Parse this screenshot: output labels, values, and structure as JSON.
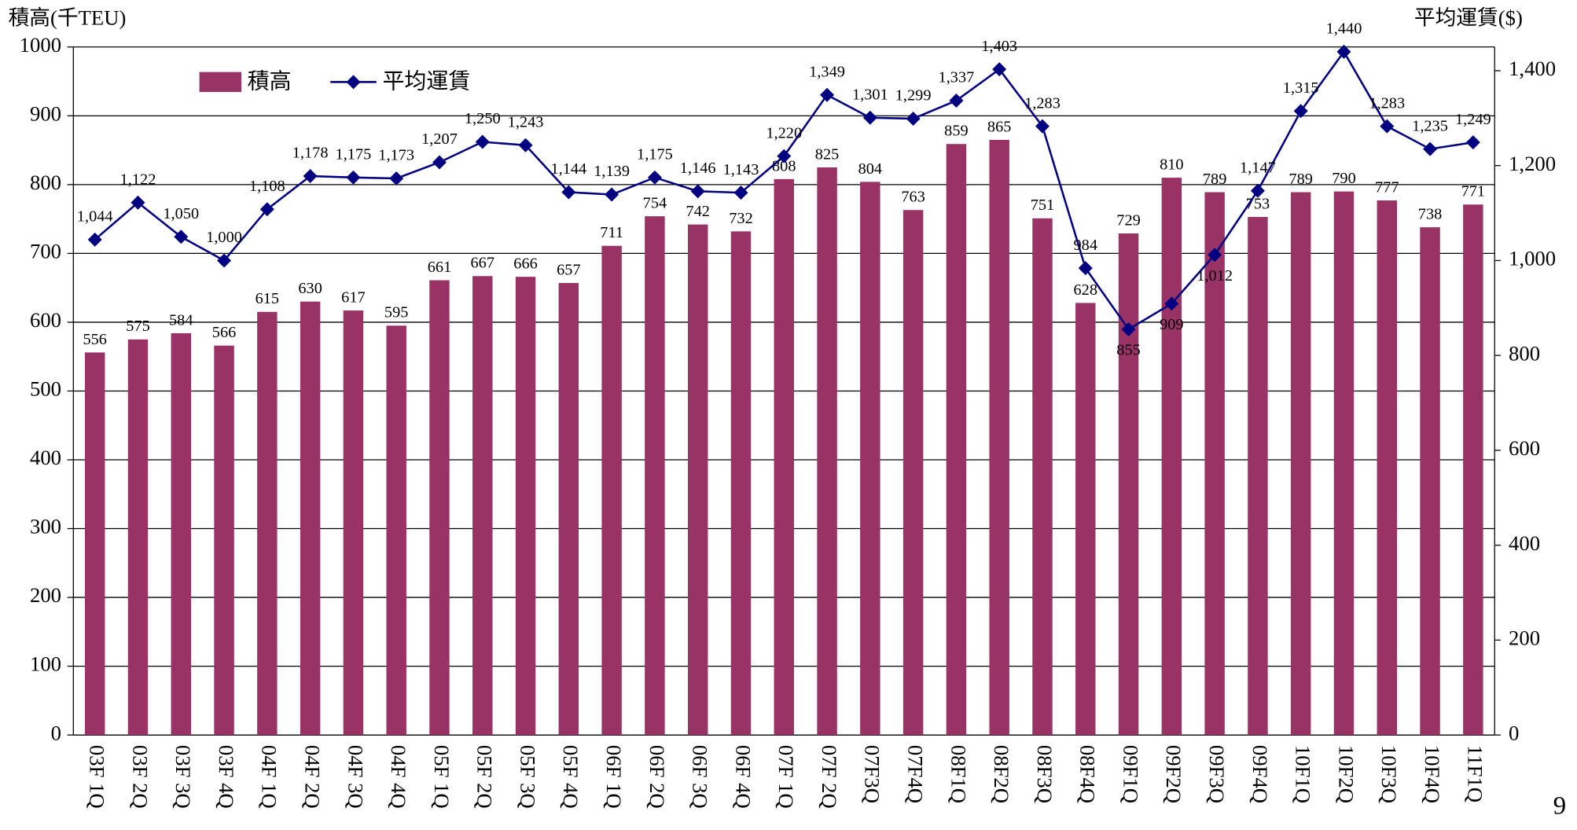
{
  "chart_data": {
    "type": "bar_line",
    "y_axis_label": "積高(千TEU)",
    "y2_axis_label": "平均運賃($)",
    "categories": [
      "03F 1Q",
      "03F 2Q",
      "03F 3Q",
      "03F 4Q",
      "04F 1Q",
      "04F 2Q",
      "04F 3Q",
      "04F 4Q",
      "05F 1Q",
      "05F 2Q",
      "05F 3Q",
      "05F 4Q",
      "06F 1Q",
      "06F 2Q",
      "06F 3Q",
      "06F 4Q",
      "07F 1Q",
      "07F 2Q",
      "07F3Q",
      "07F4Q",
      "08F1Q",
      "08F2Q",
      "08F3Q",
      "08F4Q",
      "09F1Q",
      "09F2Q",
      "09F3Q",
      "09F4Q",
      "10F1Q",
      "10F2Q",
      "10F3Q",
      "10F4Q",
      "11F1Q"
    ],
    "series": [
      {
        "name": "積高",
        "type": "bar",
        "color": "#993366",
        "values": [
          556,
          575,
          584,
          566,
          615,
          630,
          617,
          595,
          661,
          667,
          666,
          657,
          711,
          754,
          742,
          732,
          808,
          825,
          804,
          763,
          859,
          865,
          751,
          628,
          729,
          810,
          789,
          753,
          789,
          790,
          777,
          738,
          771
        ]
      },
      {
        "name": "平均運賃",
        "type": "line",
        "axis": "y2",
        "color": "#000080",
        "values": [
          1044,
          1122,
          1050,
          1000,
          1108,
          1178,
          1175,
          1173,
          1207,
          1250,
          1243,
          1144,
          1139,
          1175,
          1146,
          1143,
          1220,
          1349,
          1301,
          1299,
          1337,
          1403,
          1283,
          984,
          855,
          909,
          1012,
          1147,
          1315,
          1440,
          1283,
          1235,
          1249
        ],
        "value_labels": [
          "1,044",
          "1,122",
          "1,050",
          "1,000",
          "1,108",
          "1,178",
          "1,175",
          "1,173",
          "1,207",
          "1,250",
          "1,243",
          "1,144",
          "1,139",
          "1,175",
          "1,146",
          "1,143",
          "1,220",
          "1,349",
          "1,301",
          "1,299",
          "1,337",
          "1,403",
          "1,283",
          "984",
          "855",
          "909",
          "1,012",
          "1,147",
          "1,315",
          "1,440",
          "1,283",
          "1,235",
          "1,249"
        ]
      }
    ],
    "ylim": [
      0,
      1000
    ],
    "yticks": [
      0,
      100,
      200,
      300,
      400,
      500,
      600,
      700,
      800,
      900,
      1000
    ],
    "y2lim": [
      0,
      1450
    ],
    "y2ticks": [
      0,
      200,
      400,
      600,
      800,
      {
        "value": 1000,
        "label": "1,000"
      },
      {
        "value": 1200,
        "label": "1,200"
      },
      {
        "value": 1400,
        "label": "1,400"
      }
    ],
    "grid": true
  },
  "page_number": "9"
}
